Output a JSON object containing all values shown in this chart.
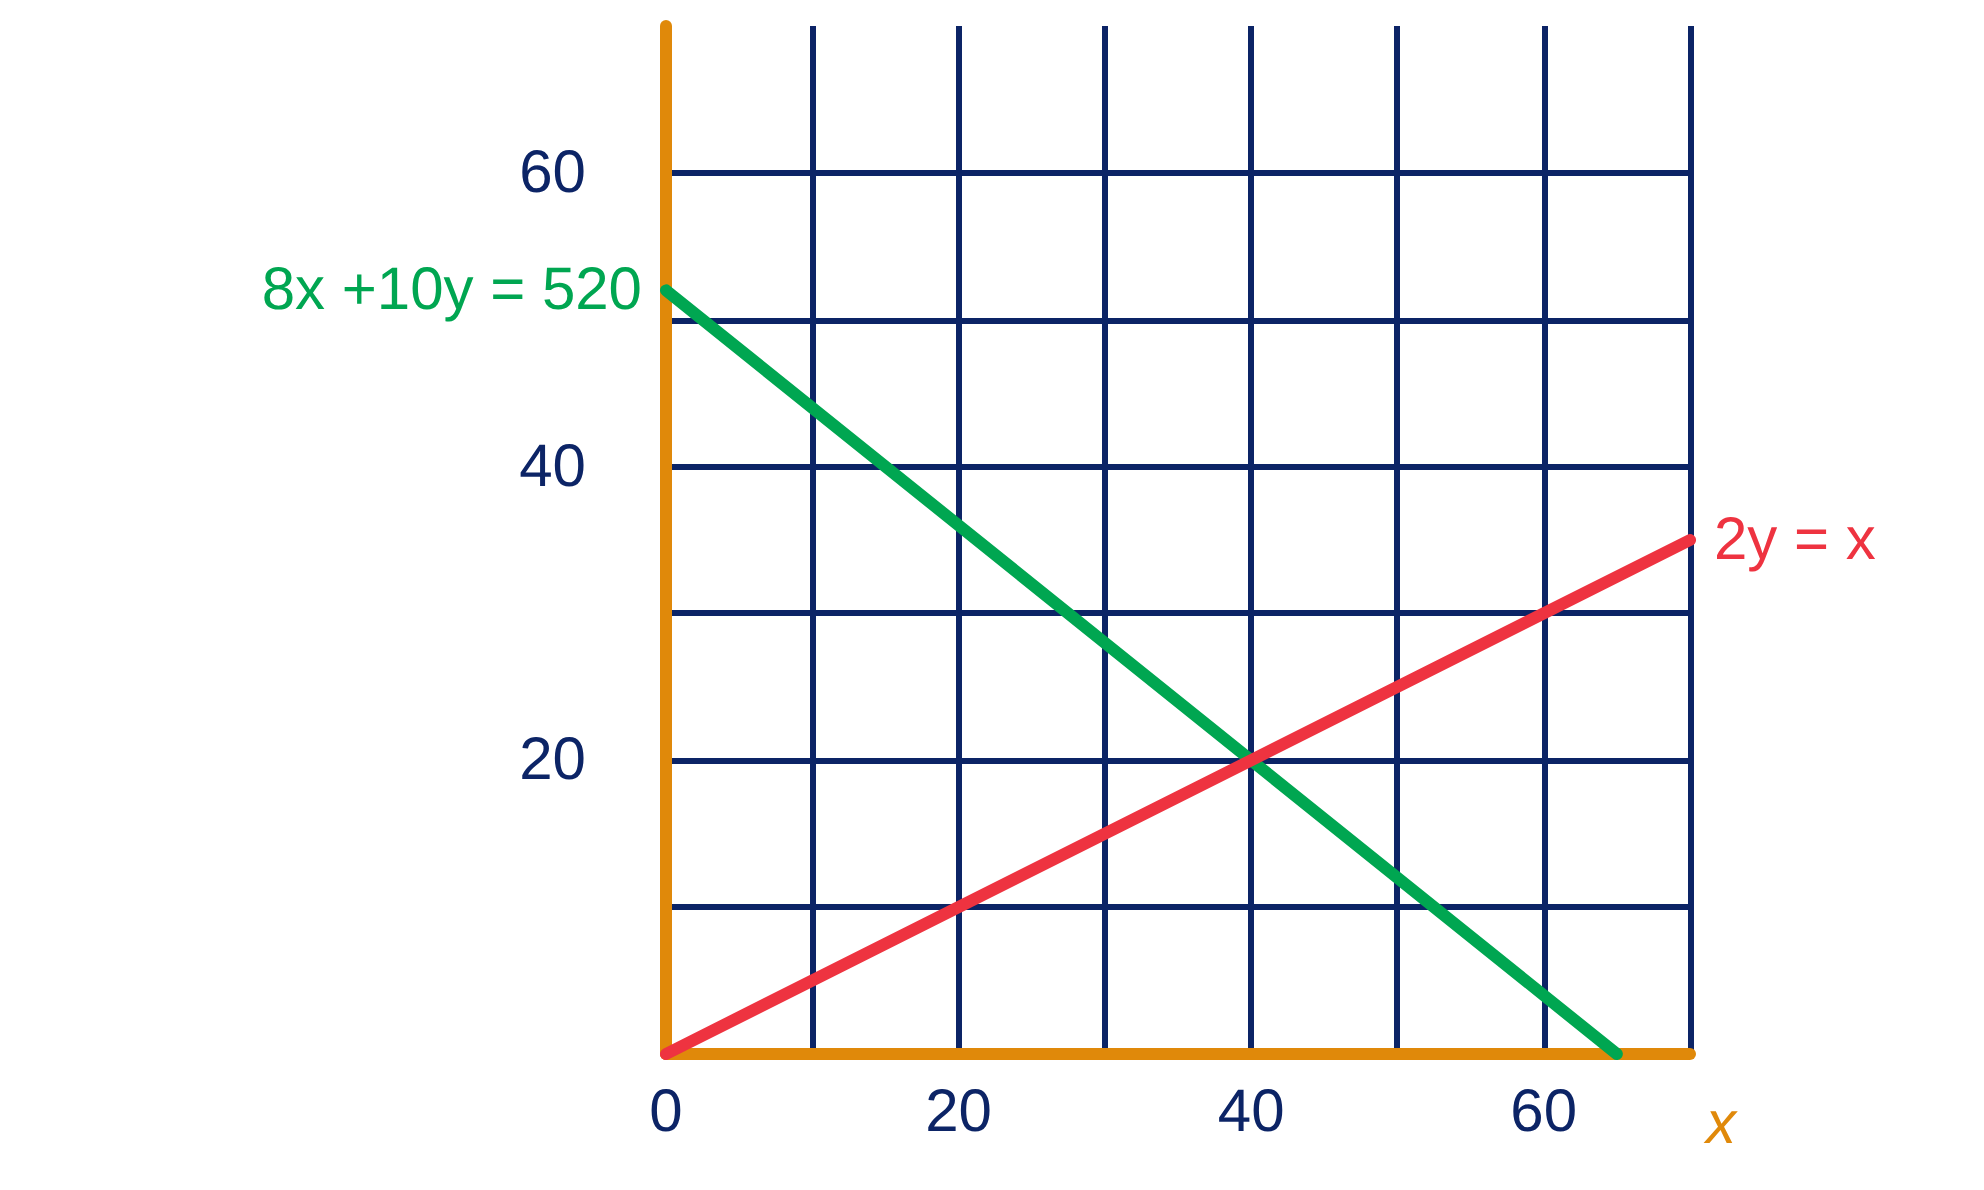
{
  "chart_data": {
    "type": "line",
    "xlabel": "x",
    "series": [
      {
        "name": "8x +10y = 520",
        "color": "#00a651",
        "x": [
          0,
          65
        ],
        "values": [
          52,
          0
        ]
      },
      {
        "name": "2y = x",
        "color": "#ee3340",
        "x": [
          0,
          70
        ],
        "values": [
          0,
          35
        ]
      }
    ],
    "xlim": [
      0,
      70
    ],
    "xticks": [
      0,
      {
        "value": 10,
        "label": null
      },
      20,
      {
        "value": 30,
        "label": null
      },
      40,
      {
        "value": 50,
        "label": null
      },
      60,
      {
        "value": 70,
        "label": null
      }
    ],
    "ylim": [
      0,
      70
    ],
    "yticks": [
      {
        "value": 10,
        "label": null
      },
      20,
      {
        "value": 30,
        "label": null
      },
      40,
      {
        "value": 50,
        "label": null
      },
      60
    ],
    "grid": true,
    "legend": false,
    "marker": "none",
    "line_style": "solid"
  }
}
